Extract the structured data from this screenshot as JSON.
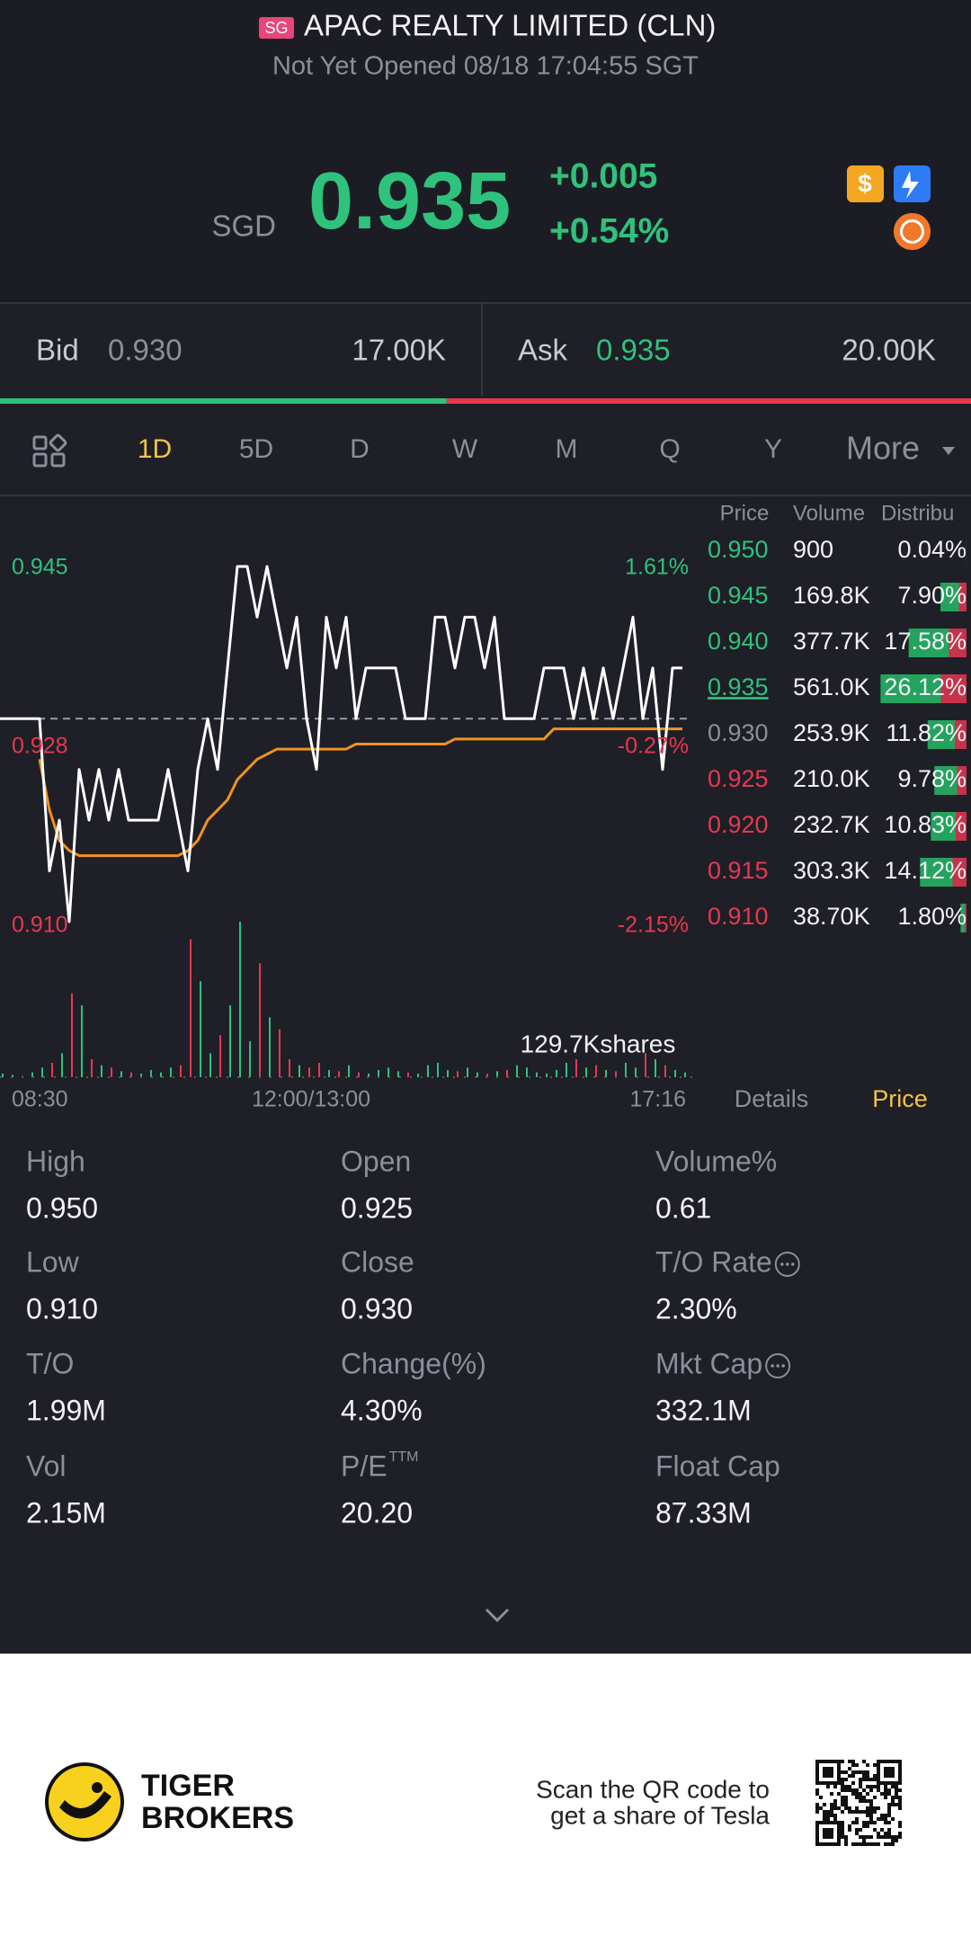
{
  "header": {
    "badge": "SG",
    "title": "APAC REALTY LIMITED (CLN)",
    "status": "Not Yet Opened 08/18 17:04:55 SGT"
  },
  "quote": {
    "currency": "SGD",
    "price": "0.935",
    "change": "+0.005",
    "change_pct": "+0.54%"
  },
  "bid_ask": {
    "bid_label": "Bid",
    "bid_price": "0.930",
    "bid_size": "17.00K",
    "ask_label": "Ask",
    "ask_price": "0.935",
    "ask_size": "20.00K",
    "bid_share": 46
  },
  "tabs": {
    "items": [
      "1D",
      "5D",
      "D",
      "W",
      "M",
      "Q",
      "Y",
      "More"
    ],
    "active": 0
  },
  "chart": {
    "ylim": [
      0.91,
      0.945
    ],
    "prev_close": 0.93,
    "left_labels": [
      "0.945",
      "0.928",
      "0.910"
    ],
    "right_labels": [
      "1.61%",
      "-0.27%",
      "-2.15%"
    ],
    "price": [
      0.93,
      0.93,
      0.93,
      0.93,
      0.93,
      0.915,
      0.92,
      0.91,
      0.925,
      0.92,
      0.925,
      0.92,
      0.925,
      0.92,
      0.92,
      0.92,
      0.92,
      0.925,
      0.92,
      0.915,
      0.925,
      0.93,
      0.925,
      0.935,
      0.945,
      0.945,
      0.94,
      0.945,
      0.94,
      0.935,
      0.94,
      0.93,
      0.925,
      0.94,
      0.935,
      0.94,
      0.93,
      0.935,
      0.935,
      0.935,
      0.935,
      0.93,
      0.93,
      0.93,
      0.94,
      0.94,
      0.935,
      0.94,
      0.94,
      0.935,
      0.94,
      0.93,
      0.93,
      0.93,
      0.93,
      0.935,
      0.935,
      0.935,
      0.93,
      0.935,
      0.93,
      0.935,
      0.93,
      0.935,
      0.94,
      0.93,
      0.935,
      0.925,
      0.935,
      0.935
    ],
    "average": [
      null,
      null,
      null,
      null,
      0.926,
      0.921,
      0.918,
      0.917,
      0.9165,
      0.9165,
      0.9165,
      0.9165,
      0.9165,
      0.9165,
      0.9165,
      0.9165,
      0.9165,
      0.9165,
      0.9165,
      0.917,
      0.918,
      0.92,
      0.921,
      0.922,
      0.924,
      0.925,
      0.926,
      0.9265,
      0.927,
      0.927,
      0.927,
      0.927,
      0.927,
      0.927,
      0.927,
      0.927,
      0.9275,
      0.9275,
      0.9275,
      0.9275,
      0.9275,
      0.9275,
      0.9275,
      0.9275,
      0.9275,
      0.9275,
      0.928,
      0.928,
      0.928,
      0.928,
      0.928,
      0.928,
      0.928,
      0.928,
      0.928,
      0.928,
      0.929,
      0.929,
      0.929,
      0.929,
      0.929,
      0.929,
      0.929,
      0.929,
      0.929,
      0.929,
      0.929,
      0.929,
      0.929,
      0.929
    ],
    "volume": [
      3,
      2,
      1,
      4,
      8,
      12,
      20,
      70,
      60,
      15,
      10,
      8,
      5,
      4,
      3,
      6,
      4,
      8,
      10,
      115,
      80,
      20,
      35,
      60,
      129.7,
      30,
      95,
      50,
      40,
      15,
      10,
      8,
      12,
      6,
      5,
      10,
      4,
      3,
      6,
      8,
      5,
      4,
      3,
      10,
      12,
      6,
      5,
      8,
      4,
      3,
      5,
      6,
      10,
      8,
      4,
      3,
      6,
      12,
      15,
      8,
      10,
      6,
      5,
      12,
      8,
      20,
      15,
      10,
      6,
      4
    ],
    "volume_max": 129.7,
    "volume_label": "129.7Kshares",
    "time_labels": [
      "08:30",
      "12:00/13:00",
      "17:16"
    ]
  },
  "order_book": {
    "headers": [
      "Price",
      "Volume",
      "Distribu"
    ],
    "rows": [
      {
        "price": "0.950",
        "volume": "900",
        "pct": 0.04,
        "pct_label": "0.04%",
        "color": "#2fc27c"
      },
      {
        "price": "0.945",
        "volume": "169.8K",
        "pct": 7.9,
        "pct_label": "7.90%",
        "color": "#2fc27c"
      },
      {
        "price": "0.940",
        "volume": "377.7K",
        "pct": 17.58,
        "pct_label": "17.58%",
        "color": "#2fc27c"
      },
      {
        "price": "0.935",
        "volume": "561.0K",
        "pct": 26.12,
        "pct_label": "26.12%",
        "color": "#2fc27c",
        "underline": true
      },
      {
        "price": "0.930",
        "volume": "253.9K",
        "pct": 11.82,
        "pct_label": "11.82%",
        "color": "#8d8e99"
      },
      {
        "price": "0.925",
        "volume": "210.0K",
        "pct": 9.78,
        "pct_label": "9.78%",
        "color": "#e8384f"
      },
      {
        "price": "0.920",
        "volume": "232.7K",
        "pct": 10.83,
        "pct_label": "10.83%",
        "color": "#e8384f"
      },
      {
        "price": "0.915",
        "volume": "303.3K",
        "pct": 14.12,
        "pct_label": "14.12%",
        "color": "#e8384f"
      },
      {
        "price": "0.910",
        "volume": "38.70K",
        "pct": 1.8,
        "pct_label": "1.80%",
        "color": "#e8384f"
      }
    ]
  },
  "panel_tabs": {
    "items": [
      "Details",
      "Price"
    ],
    "active": 1
  },
  "stats": [
    {
      "label": "High",
      "value": "0.950"
    },
    {
      "label": "Open",
      "value": "0.925"
    },
    {
      "label": "Volume%",
      "value": "0.61"
    },
    {
      "label": "Low",
      "value": "0.910"
    },
    {
      "label": "Close",
      "value": "0.930"
    },
    {
      "label": "T/O Rate",
      "value": "2.30%",
      "info": true
    },
    {
      "label": "T/O",
      "value": "1.99M"
    },
    {
      "label": "Change(%)",
      "value": "4.30%"
    },
    {
      "label": "Mkt Cap",
      "value": "332.1M",
      "info": true
    },
    {
      "label": "Vol",
      "value": "2.15M"
    },
    {
      "label": "P/E",
      "sup": "TTM",
      "value": "20.20"
    },
    {
      "label": "Float Cap",
      "value": "87.33M"
    }
  ],
  "footer": {
    "brand": [
      "TIGER",
      "BROKERS"
    ],
    "promo": [
      "Scan the QR code to",
      "get a share of Tesla"
    ]
  }
}
